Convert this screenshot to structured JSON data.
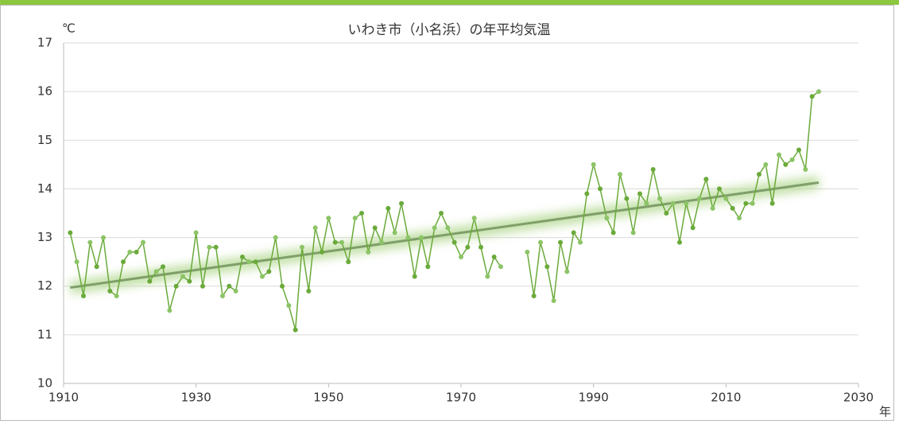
{
  "chart_data": {
    "type": "line",
    "title": "いわき市（小名浜）の年平均気温",
    "y_unit": "℃",
    "x_unit": "年",
    "x": [
      1911,
      1912,
      1913,
      1914,
      1915,
      1916,
      1917,
      1918,
      1919,
      1920,
      1921,
      1922,
      1923,
      1924,
      1925,
      1926,
      1927,
      1928,
      1929,
      1930,
      1931,
      1932,
      1933,
      1934,
      1935,
      1936,
      1937,
      1938,
      1939,
      1940,
      1941,
      1942,
      1943,
      1944,
      1945,
      1946,
      1947,
      1948,
      1949,
      1950,
      1951,
      1952,
      1953,
      1954,
      1955,
      1956,
      1957,
      1958,
      1959,
      1960,
      1961,
      1962,
      1963,
      1964,
      1965,
      1966,
      1967,
      1968,
      1969,
      1970,
      1971,
      1972,
      1973,
      1974,
      1975,
      1976,
      1977,
      1978,
      1979,
      1980,
      1981,
      1982,
      1983,
      1984,
      1985,
      1986,
      1987,
      1988,
      1989,
      1990,
      1991,
      1992,
      1993,
      1994,
      1995,
      1996,
      1997,
      1998,
      1999,
      2000,
      2001,
      2002,
      2003,
      2004,
      2005,
      2006,
      2007,
      2008,
      2009,
      2010,
      2011,
      2012,
      2013,
      2014,
      2015,
      2016,
      2017,
      2018,
      2019,
      2020,
      2021,
      2022,
      2023,
      2024
    ],
    "series": [
      {
        "color": "#6aaa3a",
        "values": [
          13.1,
          12.5,
          11.8,
          12.9,
          12.4,
          13.0,
          11.9,
          11.8,
          12.5,
          12.7,
          12.7,
          12.9,
          12.1,
          12.3,
          12.4,
          11.5,
          12.0,
          12.2,
          12.1,
          13.1,
          12.0,
          12.8,
          12.8,
          11.8,
          12.0,
          11.9,
          12.6,
          12.5,
          12.5,
          12.2,
          12.3,
          13.0,
          12.0,
          11.6,
          11.1,
          12.8,
          11.9,
          13.2,
          12.7,
          13.4,
          12.9,
          12.9,
          12.5,
          13.4,
          13.5,
          12.7,
          13.2,
          12.9,
          13.6,
          13.1,
          13.7,
          13.0,
          12.2,
          13.0,
          12.4,
          13.2,
          13.5,
          13.2,
          12.9,
          12.6,
          12.8,
          13.4,
          12.8,
          12.2,
          12.6,
          12.4,
          null,
          null,
          null,
          12.7,
          11.8,
          12.9,
          12.4,
          11.7,
          12.9,
          12.3,
          13.1,
          12.9,
          13.9,
          14.5,
          14.0,
          13.4,
          13.1,
          14.3,
          13.8,
          13.1,
          13.9,
          13.7,
          14.4,
          13.8,
          13.5,
          13.7,
          12.9,
          13.7,
          13.2,
          13.8,
          14.2,
          13.6,
          14.0,
          13.8,
          13.6,
          13.4,
          13.7,
          13.7,
          14.3,
          14.5,
          13.7,
          14.7,
          14.5,
          14.6,
          14.8,
          14.4,
          15.9,
          16.0
        ]
      }
    ],
    "trend": {
      "color": "#7f9f6a",
      "x": [
        1911,
        2024
      ],
      "values": [
        11.97,
        14.13
      ]
    },
    "xlim": [
      1910,
      2030
    ],
    "xticks": [
      1910,
      1930,
      1950,
      1970,
      1990,
      2010,
      2030
    ],
    "ylim": [
      10,
      17
    ],
    "yticks": [
      10,
      11,
      12,
      13,
      14,
      15,
      16,
      17
    ],
    "grid": true
  }
}
